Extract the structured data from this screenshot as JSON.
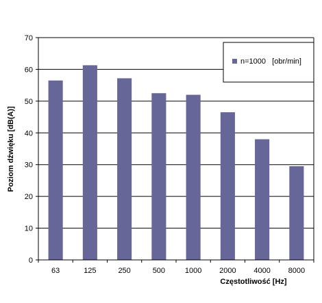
{
  "chart_data": {
    "type": "bar",
    "title": "",
    "xlabel": "Częstotliwość  [Hz]",
    "ylabel": "Poziom dźwięku [dB(A)]",
    "categories": [
      "63",
      "125",
      "250",
      "500",
      "1000",
      "2000",
      "4000",
      "8000"
    ],
    "series": [
      {
        "name": "n=1000   [obr/min]",
        "values": [
          56.5,
          61.3,
          57.2,
          52.5,
          52.0,
          46.5,
          38.0,
          29.5
        ],
        "color": "#666699"
      }
    ],
    "ylim": [
      0,
      70
    ],
    "yticks": [
      "0",
      "10",
      "20",
      "30",
      "40",
      "50",
      "60",
      "70"
    ],
    "grid": true,
    "legend_position": "top-right"
  }
}
